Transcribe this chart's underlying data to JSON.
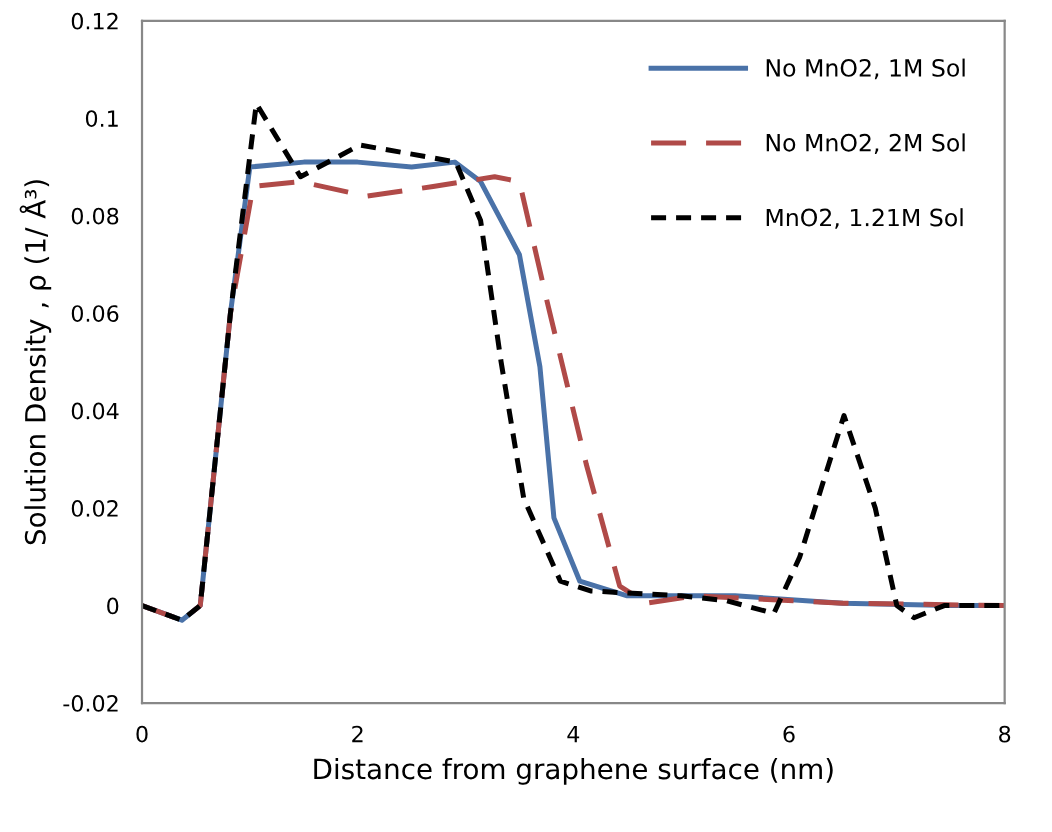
{
  "chart_data": {
    "type": "line",
    "xlabel": "Distance from graphene surface (nm)",
    "ylabel": "Solution Density , ρ (1/ Å³)",
    "xlim": [
      0,
      8
    ],
    "xticks": [
      0,
      2,
      4,
      6,
      8
    ],
    "ylim": [
      -0.02,
      0.12
    ],
    "yticks": [
      {
        "value": -0.02,
        "label": "-0.02"
      },
      0,
      {
        "value": 0.02,
        "label": "0.02"
      },
      {
        "value": 0.04,
        "label": "0.04"
      },
      {
        "value": 0.06,
        "label": "0.06"
      },
      {
        "value": 0.08,
        "label": "0.08"
      },
      {
        "value": 0.1,
        "label": "0.1"
      },
      {
        "value": 0.12,
        "label": "0.12"
      }
    ],
    "grid": false,
    "legend": "top right",
    "marker": "none",
    "series": [
      {
        "name": "No MnO2, 1M Sol",
        "color": "#4a72a8",
        "line_style": "solid",
        "x": [
          0,
          0.37,
          0.54,
          0.82,
          1.0,
          1.5,
          2.0,
          2.5,
          2.9,
          3.14,
          3.5,
          3.69,
          3.82,
          4.06,
          4.5,
          5.5,
          6.5,
          7.5,
          8
        ],
        "values": [
          0,
          -0.003,
          0,
          0.06,
          0.09,
          0.091,
          0.091,
          0.09,
          0.091,
          0.087,
          0.072,
          0.049,
          0.018,
          0.005,
          0.002,
          0.002,
          0.0005,
          0,
          0
        ]
      },
      {
        "name": "No MnO2, 2M Sol",
        "color": "#b04a48",
        "line_style": "dashed",
        "x": [
          0,
          0.37,
          0.54,
          0.82,
          1.03,
          1.47,
          2.08,
          2.7,
          3.27,
          3.5,
          3.75,
          4.12,
          4.43,
          4.68,
          5.12,
          6.5,
          8
        ],
        "values": [
          0,
          -0.003,
          0,
          0.06,
          0.086,
          0.087,
          0.084,
          0.086,
          0.088,
          0.087,
          0.063,
          0.029,
          0.004,
          0.0005,
          0.002,
          0.0005,
          0
        ]
      },
      {
        "name": "MnO2, 1.21M Sol",
        "color": "#000000",
        "line_style": "dotted",
        "x": [
          0,
          0.37,
          0.54,
          0.82,
          1.06,
          1.47,
          2.02,
          2.67,
          2.91,
          3.14,
          3.33,
          3.54,
          3.88,
          4.16,
          5.0,
          5.42,
          5.86,
          6.1,
          6.51,
          6.8,
          7.0,
          7.16,
          7.44,
          8
        ],
        "values": [
          0,
          -0.003,
          0,
          0.06,
          0.103,
          0.088,
          0.0945,
          0.092,
          0.091,
          0.079,
          0.05,
          0.022,
          0.005,
          0.003,
          0.002,
          0.001,
          -0.0016,
          0.01,
          0.039,
          0.02,
          0,
          -0.0025,
          0,
          0
        ]
      }
    ]
  }
}
